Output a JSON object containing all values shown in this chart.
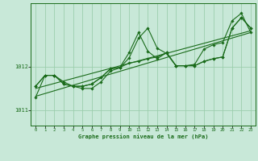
{
  "title": "Graphe pression niveau de la mer (hPa)",
  "bg_color": "#c8e8d8",
  "grid_color": "#99ccaa",
  "line_color": "#1a6b1a",
  "xlim": [
    -0.5,
    23.5
  ],
  "ylim": [
    1010.65,
    1013.45
  ],
  "ytick_vals": [
    1011,
    1012
  ],
  "xtick_vals": [
    0,
    1,
    2,
    3,
    4,
    5,
    6,
    7,
    8,
    9,
    10,
    11,
    12,
    13,
    14,
    15,
    16,
    17,
    18,
    19,
    20,
    21,
    22,
    23
  ],
  "series_main": [
    1011.3,
    1011.8,
    1011.8,
    1011.65,
    1011.55,
    1011.5,
    1011.5,
    1011.65,
    1011.9,
    1011.97,
    1012.2,
    1012.65,
    1012.88,
    1012.42,
    1012.3,
    1012.02,
    1012.02,
    1012.05,
    1012.4,
    1012.5,
    1012.55,
    1013.05,
    1013.22,
    1012.78
  ],
  "series_b": [
    1011.55,
    1011.8,
    1011.8,
    1011.6,
    1011.55,
    1011.55,
    1011.6,
    1011.75,
    1011.95,
    1011.98,
    1012.08,
    1012.12,
    1012.18,
    1012.22,
    1012.32,
    1012.02,
    1012.02,
    1012.02,
    1012.12,
    1012.18,
    1012.22,
    1012.88,
    1013.12,
    1012.88
  ],
  "series_c": [
    1011.55,
    1011.8,
    1011.8,
    1011.6,
    1011.55,
    1011.55,
    1011.6,
    1011.75,
    1011.95,
    1011.98,
    1012.32,
    1012.78,
    1012.35,
    1012.18,
    1012.32,
    1012.02,
    1012.02,
    1012.02,
    1012.12,
    1012.18,
    1012.22,
    1012.88,
    1013.12,
    1012.88
  ],
  "trend1_x": [
    0,
    23
  ],
  "trend1_y": [
    1011.5,
    1012.82
  ],
  "trend2_x": [
    0,
    23
  ],
  "trend2_y": [
    1011.32,
    1012.78
  ]
}
